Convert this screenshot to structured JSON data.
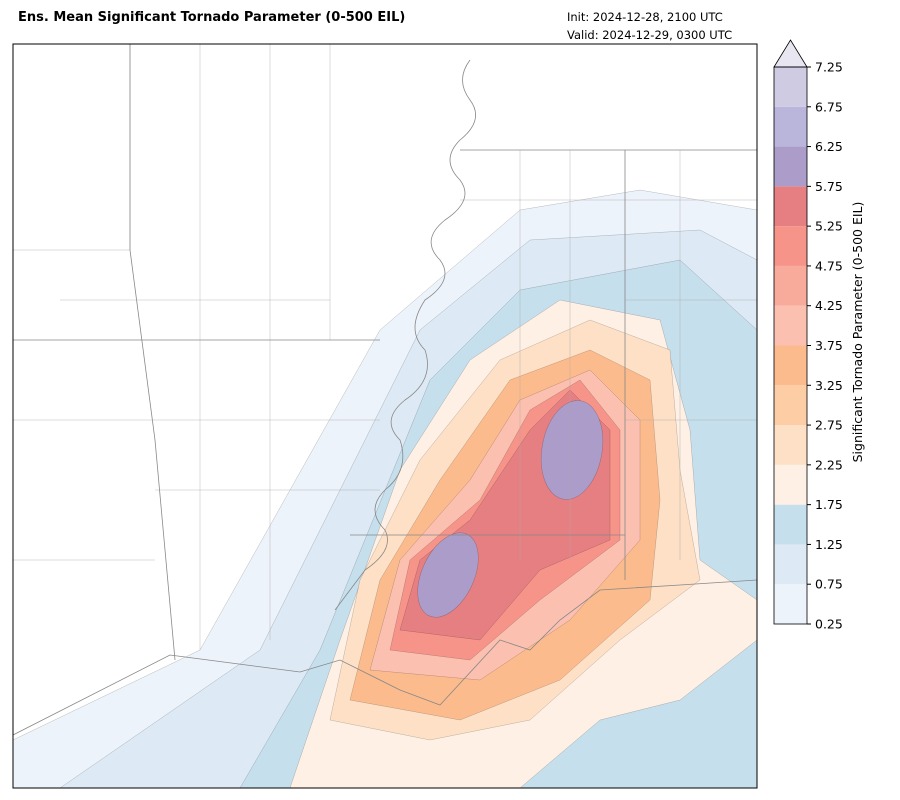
{
  "header": {
    "title": "Ens. Mean Significant Tornado Parameter (0-500 EIL)",
    "init": "Init:  2024-12-28, 2100 UTC",
    "valid": "Valid: 2024-12-29, 0300 UTC"
  },
  "colorbar": {
    "label": "Significant Tornado Parameter (0-500 EIL)",
    "levels": [
      0.25,
      0.75,
      1.25,
      1.75,
      2.25,
      2.75,
      3.25,
      3.75,
      4.25,
      4.75,
      5.25,
      5.75,
      6.25,
      6.75,
      7.25
    ],
    "colors": [
      "#edf3fa",
      "#dde9f4",
      "#c6dfec",
      "#fef0e4",
      "#fde0c6",
      "#fdcda5",
      "#fcbb8d",
      "#fbc0b0",
      "#f9ab9b",
      "#f6948a",
      "#e67f82",
      "#ab9cc9",
      "#bab5da",
      "#cfcbe2"
    ],
    "extend_color": "#e8e6f0"
  }
}
